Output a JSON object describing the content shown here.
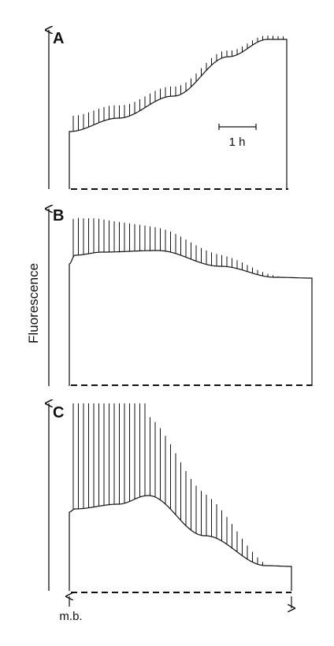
{
  "panels": [
    {
      "label": "A"
    },
    {
      "label": "B"
    },
    {
      "label": "C"
    }
  ],
  "y_label": "Fluorescence",
  "scale_bar": "1 h",
  "marker": "m.b."
}
